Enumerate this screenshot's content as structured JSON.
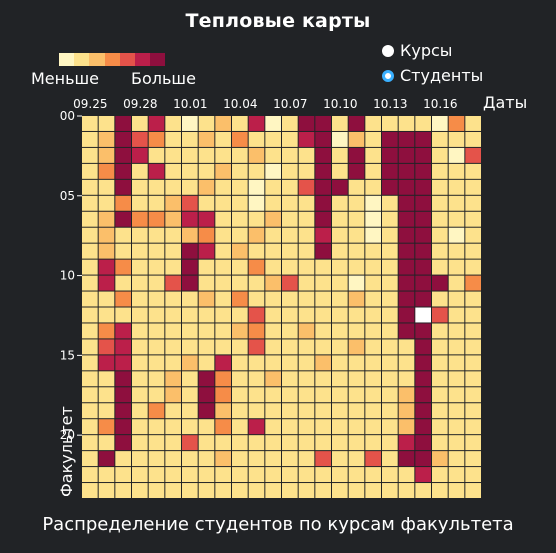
{
  "title": "Тепловые карты",
  "legend": {
    "less": "Меньше",
    "more": "Больше"
  },
  "scale_colors": [
    "#fff6c2",
    "#fde28c",
    "#fbbf6a",
    "#f68c48",
    "#e4534a",
    "#bb1f4a",
    "#8e0f3e"
  ],
  "selector": {
    "options": [
      {
        "label": "Курсы",
        "selected": false
      },
      {
        "label": "Студенты",
        "selected": true
      }
    ],
    "accent": "#3ab0ff"
  },
  "caption": "Распределение студентов по курсам факультета",
  "chart_data": {
    "type": "heatmap",
    "xlabel": "Даты",
    "ylabel": "Факультет",
    "x_tick_labels": [
      "09.25",
      "09.28",
      "10.01",
      "10.04",
      "10.07",
      "10.10",
      "10.13",
      "10.16"
    ],
    "y_tick_labels": [
      "00",
      "05",
      "10",
      "15",
      "20"
    ],
    "n_cols": 24,
    "n_rows": 24,
    "scale": [
      0,
      6
    ],
    "values": [
      [
        1,
        1,
        6,
        1,
        5,
        1,
        0,
        1,
        2,
        1,
        5,
        0,
        1,
        6,
        6,
        1,
        6,
        1,
        1,
        1,
        1,
        0,
        3,
        1
      ],
      [
        1,
        2,
        6,
        4,
        3,
        1,
        1,
        2,
        1,
        3,
        1,
        1,
        1,
        5,
        6,
        0,
        2,
        1,
        6,
        6,
        6,
        1,
        1,
        1
      ],
      [
        1,
        2,
        6,
        5,
        1,
        1,
        1,
        1,
        1,
        1,
        2,
        1,
        1,
        1,
        6,
        1,
        6,
        1,
        6,
        6,
        6,
        1,
        0,
        4
      ],
      [
        1,
        3,
        6,
        1,
        5,
        1,
        1,
        1,
        2,
        1,
        1,
        0,
        1,
        1,
        6,
        1,
        6,
        1,
        6,
        6,
        6,
        1,
        1,
        1
      ],
      [
        1,
        1,
        6,
        1,
        1,
        1,
        1,
        2,
        1,
        1,
        0,
        1,
        1,
        4,
        6,
        6,
        1,
        1,
        6,
        6,
        6,
        1,
        1,
        1
      ],
      [
        1,
        1,
        3,
        1,
        1,
        2,
        4,
        1,
        1,
        1,
        0,
        1,
        1,
        1,
        6,
        1,
        1,
        0,
        1,
        6,
        6,
        1,
        1,
        1
      ],
      [
        1,
        2,
        6,
        3,
        3,
        2,
        5,
        5,
        1,
        1,
        1,
        2,
        1,
        1,
        6,
        1,
        1,
        0,
        1,
        6,
        6,
        1,
        1,
        1
      ],
      [
        1,
        2,
        1,
        1,
        1,
        1,
        2,
        3,
        1,
        1,
        2,
        1,
        1,
        1,
        5,
        1,
        1,
        0,
        1,
        6,
        6,
        1,
        0,
        1
      ],
      [
        1,
        2,
        1,
        1,
        1,
        1,
        6,
        5,
        1,
        2,
        1,
        1,
        1,
        1,
        6,
        1,
        1,
        1,
        1,
        6,
        6,
        1,
        1,
        1
      ],
      [
        1,
        5,
        3,
        1,
        1,
        1,
        6,
        1,
        1,
        1,
        3,
        1,
        1,
        1,
        1,
        1,
        1,
        1,
        1,
        6,
        6,
        1,
        1,
        1
      ],
      [
        1,
        5,
        1,
        1,
        1,
        4,
        6,
        1,
        1,
        1,
        1,
        2,
        4,
        1,
        1,
        1,
        0,
        1,
        1,
        6,
        6,
        6,
        1,
        3
      ],
      [
        1,
        1,
        3,
        1,
        1,
        1,
        1,
        2,
        1,
        3,
        1,
        1,
        1,
        1,
        1,
        1,
        2,
        1,
        1,
        6,
        6,
        1,
        1,
        1
      ],
      [
        1,
        1,
        1,
        1,
        1,
        1,
        1,
        1,
        1,
        1,
        4,
        1,
        1,
        1,
        1,
        1,
        1,
        1,
        1,
        6,
        6,
        4,
        1,
        1
      ],
      [
        1,
        3,
        5,
        1,
        1,
        1,
        1,
        1,
        1,
        2,
        3,
        1,
        1,
        2,
        1,
        1,
        1,
        1,
        1,
        6,
        6,
        1,
        1,
        1
      ],
      [
        1,
        4,
        5,
        1,
        1,
        1,
        1,
        1,
        1,
        1,
        4,
        1,
        1,
        1,
        1,
        1,
        2,
        1,
        1,
        1,
        6,
        1,
        1,
        1
      ],
      [
        1,
        5,
        5,
        1,
        1,
        1,
        2,
        1,
        5,
        1,
        1,
        1,
        1,
        1,
        2,
        1,
        1,
        1,
        1,
        1,
        6,
        1,
        1,
        1
      ],
      [
        1,
        1,
        6,
        1,
        1,
        2,
        1,
        6,
        3,
        1,
        1,
        2,
        1,
        1,
        1,
        1,
        1,
        1,
        1,
        1,
        6,
        1,
        1,
        1
      ],
      [
        1,
        1,
        6,
        1,
        1,
        2,
        1,
        6,
        3,
        1,
        1,
        1,
        1,
        1,
        1,
        1,
        1,
        1,
        1,
        2,
        6,
        1,
        1,
        1
      ],
      [
        1,
        1,
        6,
        1,
        3,
        1,
        1,
        6,
        2,
        1,
        1,
        1,
        1,
        1,
        1,
        1,
        1,
        1,
        1,
        2,
        6,
        1,
        1,
        1
      ],
      [
        1,
        3,
        6,
        1,
        1,
        1,
        1,
        1,
        3,
        1,
        5,
        1,
        1,
        1,
        1,
        1,
        1,
        1,
        1,
        2,
        6,
        1,
        1,
        1
      ],
      [
        1,
        1,
        6,
        1,
        1,
        1,
        4,
        1,
        1,
        1,
        1,
        1,
        1,
        1,
        1,
        1,
        1,
        1,
        1,
        5,
        6,
        1,
        1,
        1
      ],
      [
        1,
        6,
        1,
        1,
        1,
        1,
        1,
        1,
        2,
        1,
        1,
        1,
        1,
        1,
        4,
        1,
        1,
        4,
        1,
        6,
        6,
        2,
        1,
        1
      ],
      [
        1,
        1,
        1,
        1,
        1,
        1,
        1,
        1,
        1,
        1,
        1,
        1,
        1,
        1,
        1,
        1,
        1,
        1,
        1,
        1,
        5,
        1,
        1,
        1
      ],
      [
        1,
        1,
        1,
        1,
        1,
        1,
        1,
        1,
        1,
        1,
        1,
        1,
        1,
        1,
        1,
        1,
        1,
        1,
        1,
        1,
        1,
        1,
        1,
        1
      ]
    ]
  }
}
